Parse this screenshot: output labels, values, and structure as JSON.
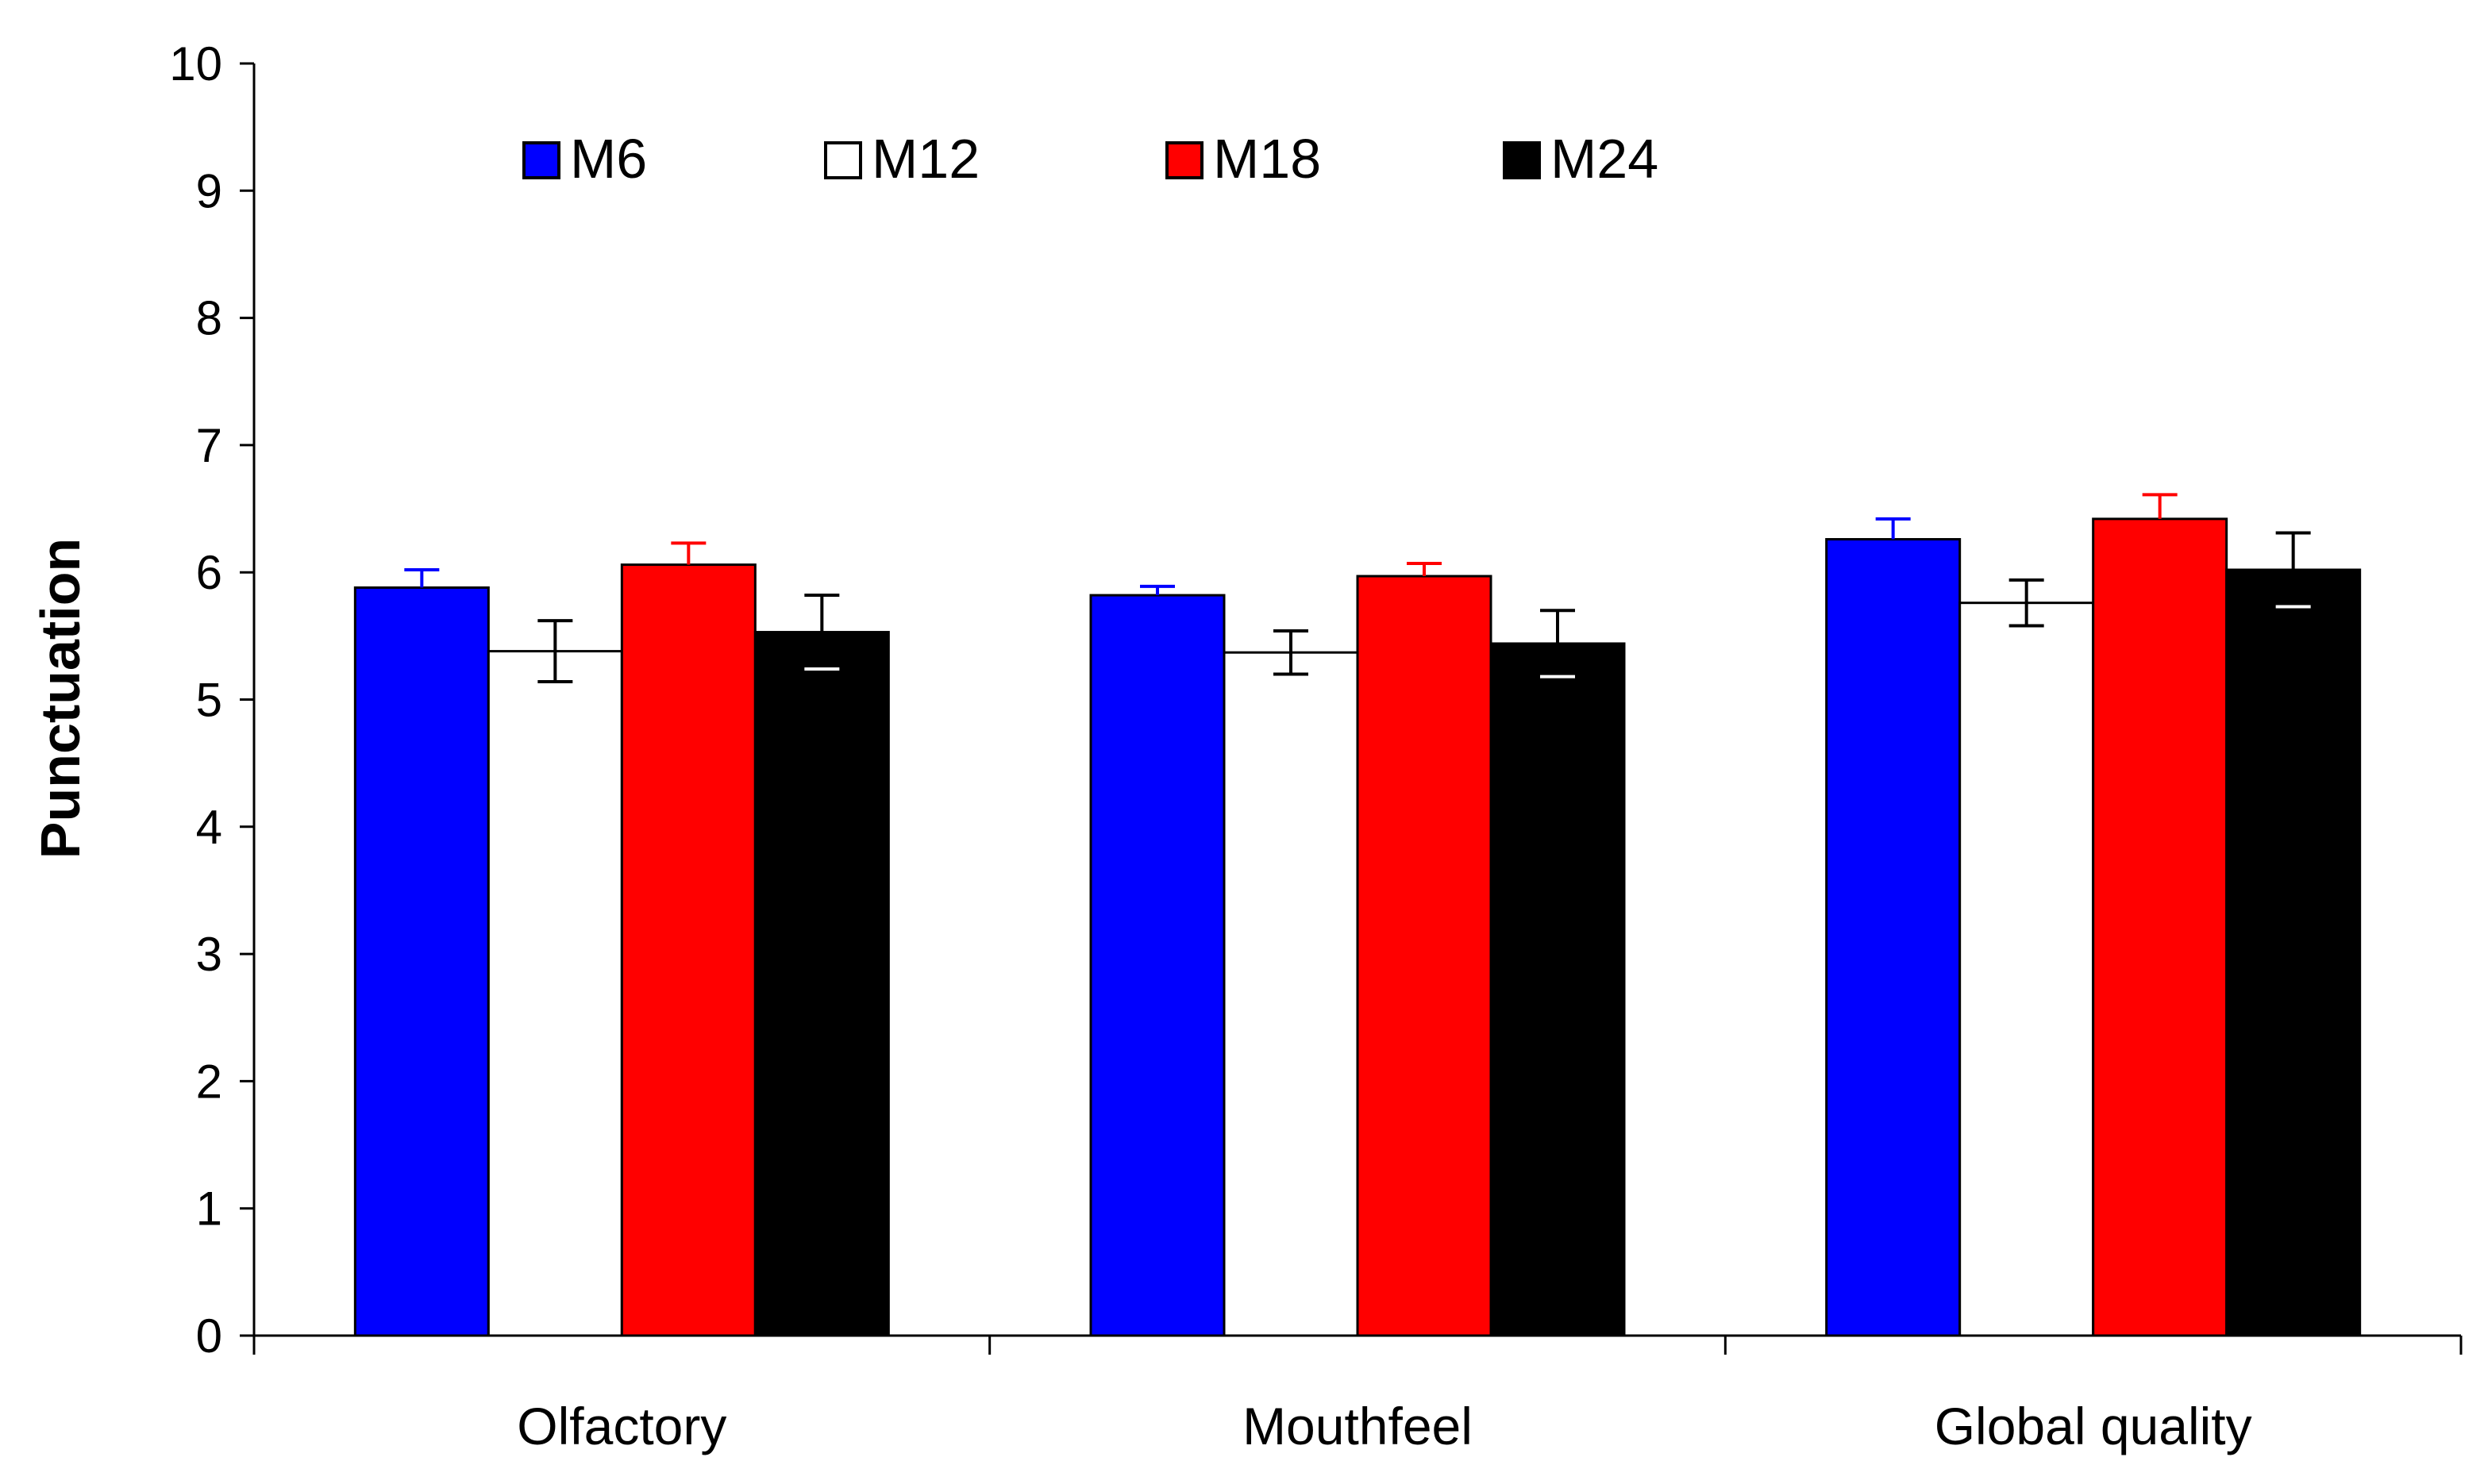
{
  "chart_data": {
    "type": "bar",
    "categories": [
      "Olfactory",
      "Mouthfeel",
      "Global quality"
    ],
    "series": [
      {
        "name": "M6",
        "color": "#0000ff",
        "values": [
          5.88,
          5.82,
          6.26
        ],
        "errors": [
          0.14,
          0.07,
          0.16
        ]
      },
      {
        "name": "M12",
        "color": "#ffffff",
        "values": [
          5.38,
          5.37,
          5.76
        ],
        "errors": [
          0.24,
          0.17,
          0.18
        ]
      },
      {
        "name": "M18",
        "color": "#ff0000",
        "values": [
          6.06,
          5.97,
          6.42
        ],
        "errors": [
          0.17,
          0.1,
          0.19
        ]
      },
      {
        "name": "M24",
        "color": "#000000",
        "values": [
          5.53,
          5.44,
          6.02
        ],
        "errors": [
          0.29,
          0.26,
          0.29
        ]
      }
    ],
    "xlabel": "",
    "ylabel": "Punctuation",
    "ylim": [
      0,
      10
    ],
    "yticks": [
      "0",
      "1",
      "2",
      "3",
      "4",
      "5",
      "6",
      "7",
      "8",
      "9",
      "10"
    ],
    "grid": false,
    "legend_position": "top-left"
  }
}
